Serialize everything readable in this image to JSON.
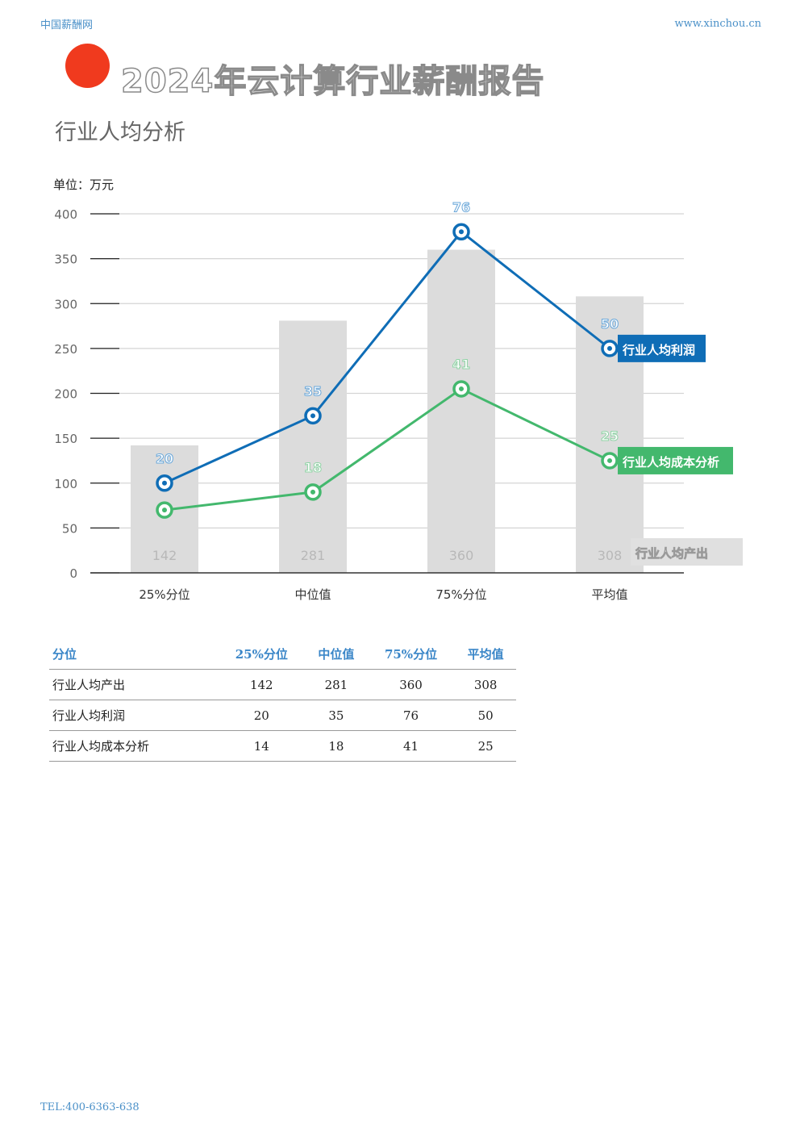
{
  "header": {
    "site_name": "中国薪酬网",
    "site_url": "www.xinchou.cn"
  },
  "report": {
    "title": "2024年云计算行业薪酬报告",
    "section": "行业人均分析"
  },
  "unit_label": "单位：万元",
  "colors": {
    "accent_dot": "#f03a1e",
    "profit": "#0f6db6",
    "cost": "#43b86d",
    "output_bar": "#dcdcdc"
  },
  "chart_data": {
    "type": "bar",
    "categories": [
      "25%分位",
      "中位值",
      "75%分位",
      "平均值"
    ],
    "ylim": [
      0,
      400
    ],
    "yticks": [
      0,
      50,
      100,
      150,
      200,
      250,
      300,
      350,
      400
    ],
    "series": [
      {
        "name": "行业人均产出",
        "type": "bar",
        "values": [
          142,
          281,
          360,
          308
        ],
        "labels": [
          "142",
          "281",
          "360",
          "308"
        ]
      },
      {
        "name": "行业人均利润",
        "type": "line",
        "values": [
          100,
          175,
          380,
          250
        ],
        "labels": [
          "20",
          "35",
          "76",
          "50"
        ]
      },
      {
        "name": "行业人均成本分析",
        "type": "line",
        "values": [
          70,
          90,
          205,
          125
        ],
        "labels": [
          "",
          "18",
          "41",
          "25"
        ]
      }
    ]
  },
  "table": {
    "headers": [
      "分位",
      "25%分位",
      "中位值",
      "75%分位",
      "平均值"
    ],
    "rows": [
      [
        "行业人均产出",
        "142",
        "281",
        "360",
        "308"
      ],
      [
        "行业人均利润",
        "20",
        "35",
        "76",
        "50"
      ],
      [
        "行业人均成本分析",
        "14",
        "18",
        "41",
        "25"
      ]
    ]
  },
  "footer": {
    "tel": "TEL:400-6363-638"
  }
}
